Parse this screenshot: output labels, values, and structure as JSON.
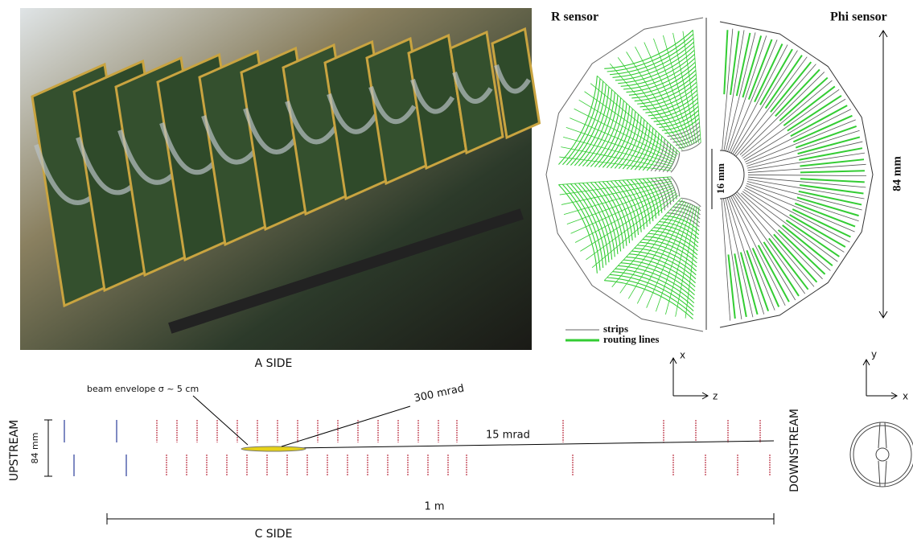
{
  "sensors": {
    "r_sensor": "R sensor",
    "phi_sensor": "Phi sensor",
    "inner_gap": "16 mm",
    "height": "84 mm",
    "legend": [
      "strips",
      "routing lines"
    ]
  },
  "layout": {
    "a_side": "A SIDE",
    "c_side": "C SIDE",
    "beam_envelope": "beam envelope σ ~ 5 cm",
    "angle_wide": "300 mrad",
    "angle_narrow": "15 mrad",
    "upstream": "UPSTREAM",
    "downstream": "DOWNSTREAM",
    "module_height": "84 mm",
    "length": "1 m",
    "axes_side": [
      "x",
      "z"
    ],
    "axes_front": [
      "y",
      "x"
    ]
  }
}
